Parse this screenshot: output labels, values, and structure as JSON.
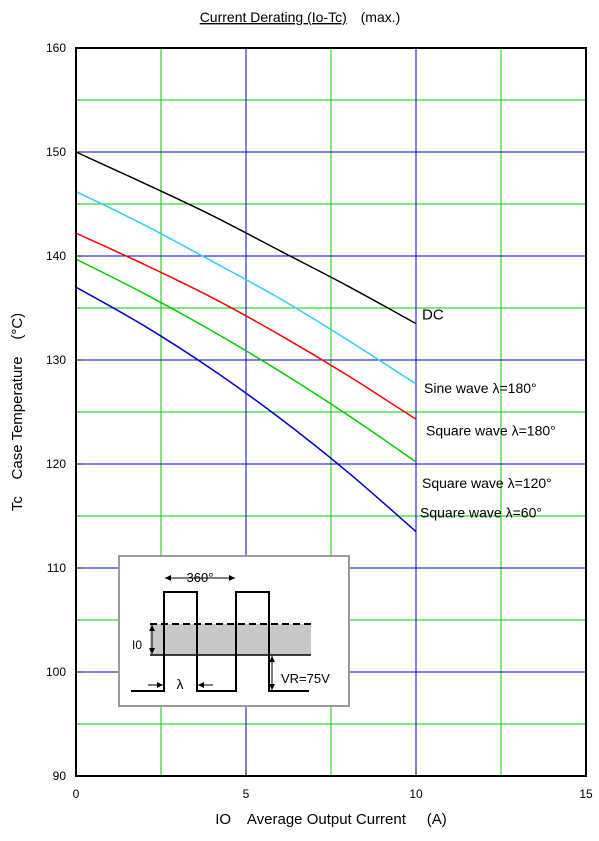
{
  "chart_data": {
    "type": "line",
    "title": "Current Derating  (Io-Tc)",
    "title_suffix": "(max.)",
    "xlabel": "IO    Average Output Current     (A)",
    "ylabel": "Tc    Case Temperature    (°C)",
    "xlim": [
      0,
      15
    ],
    "ylim": [
      90,
      160
    ],
    "x_ticks": [
      "0",
      "5",
      "10",
      "15"
    ],
    "y_ticks": [
      "90",
      "100",
      "110",
      "120",
      "130",
      "140",
      "150",
      "160"
    ],
    "grid": true,
    "colors": {
      "grid_major": "#0000cc",
      "grid_minor": "#00cc00",
      "dc": "#000000",
      "sine180": "#33ccff",
      "square180": "#ff0000",
      "square120": "#00cc00",
      "square60": "#0000cc"
    },
    "series": [
      {
        "name": "DC",
        "color_key": "dc",
        "x": [
          0,
          2,
          4,
          6,
          8,
          10
        ],
        "y": [
          150.0,
          147.0,
          143.9,
          140.5,
          137.1,
          133.5
        ]
      },
      {
        "name": "Sine wave λ=180°",
        "color_key": "sine180",
        "x": [
          0,
          2,
          4,
          6,
          8,
          10
        ],
        "y": [
          146.2,
          143.0,
          139.5,
          135.9,
          131.9,
          127.7
        ]
      },
      {
        "name": "Square wave λ=180°",
        "color_key": "square180",
        "x": [
          0,
          2,
          4,
          6,
          8,
          10
        ],
        "y": [
          142.2,
          139.2,
          136.0,
          132.4,
          128.5,
          124.3
        ]
      },
      {
        "name": "Square wave λ=120°",
        "color_key": "square120",
        "x": [
          0,
          2,
          4,
          6,
          8,
          10
        ],
        "y": [
          139.7,
          136.4,
          132.8,
          128.9,
          124.7,
          120.2
        ]
      },
      {
        "name": "Square wave λ=60°",
        "color_key": "square60",
        "x": [
          0,
          2,
          4,
          6,
          8,
          10
        ],
        "y": [
          137.0,
          133.3,
          129.1,
          124.4,
          119.2,
          113.5
        ]
      }
    ],
    "inset": {
      "label_360": "360°",
      "label_lambda": "λ",
      "label_io": "I0",
      "label_vr": "VR=75V"
    }
  }
}
